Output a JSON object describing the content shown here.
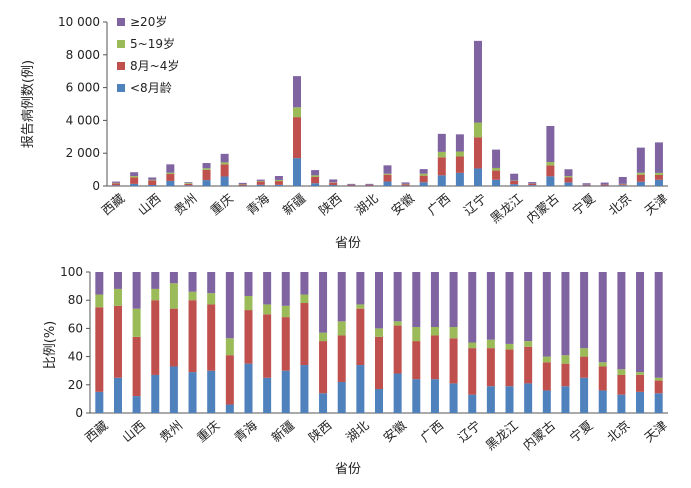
{
  "colors": {
    "lt8m": "#4F81BD",
    "m8to4y": "#C0504D",
    "y5to19": "#9BBB59",
    "ge20": "#8064A2"
  },
  "top_chart": {
    "ylabel": "报告病例数(例)",
    "xlabel": "省份"
  },
  "bottom_chart": {
    "ylabel": "比例(%)",
    "xlabel": "省份"
  },
  "chart_data": [
    {
      "type": "bar",
      "stacked": true,
      "xlabel": "省份",
      "ylabel": "报告病例数(例)",
      "ylim": [
        0,
        10000
      ],
      "yticks": [
        "0",
        "2 000",
        "4 000",
        "6 000",
        "8 000",
        "10 000"
      ],
      "categories": [
        "西藏",
        "",
        "山西",
        "",
        "贵州",
        "",
        "重庆",
        "",
        "青海",
        "",
        "新疆",
        "",
        "陕西",
        "",
        "湖北",
        "",
        "安徽",
        "",
        "广西",
        "",
        "辽宁",
        "",
        "黑龙江",
        "",
        "内蒙古",
        "",
        "宁夏",
        "",
        "北京",
        "",
        "天津"
      ],
      "legend_position": "top-left",
      "series": [
        {
          "name": "<8月龄",
          "values": [
            40,
            130,
            60,
            310,
            40,
            360,
            580,
            30,
            70,
            70,
            1700,
            170,
            60,
            20,
            20,
            270,
            30,
            230,
            650,
            800,
            1070,
            380,
            110,
            50,
            590,
            220,
            30,
            30,
            50,
            260,
            380
          ]
        },
        {
          "name": "8月~4岁",
          "values": [
            120,
            400,
            280,
            420,
            90,
            620,
            740,
            70,
            200,
            230,
            2500,
            380,
            140,
            40,
            40,
            420,
            80,
            400,
            1100,
            1000,
            1900,
            560,
            200,
            90,
            670,
            300,
            40,
            60,
            60,
            430,
            290
          ]
        },
        {
          "name": "5~19岁",
          "values": [
            30,
            80,
            40,
            80,
            50,
            100,
            120,
            20,
            40,
            70,
            600,
            100,
            20,
            10,
            10,
            60,
            20,
            120,
            330,
            300,
            900,
            160,
            20,
            10,
            200,
            80,
            10,
            10,
            20,
            120,
            130
          ]
        },
        {
          "name": "≥20岁",
          "values": [
            80,
            230,
            140,
            510,
            50,
            320,
            520,
            70,
            80,
            240,
            1900,
            320,
            180,
            60,
            60,
            510,
            90,
            280,
            1100,
            1050,
            4980,
            1120,
            420,
            90,
            2200,
            420,
            90,
            110,
            420,
            1530,
            1860
          ]
        }
      ]
    },
    {
      "type": "bar",
      "stacked": true,
      "xlabel": "省份",
      "ylabel": "比例(%)",
      "ylim": [
        0,
        100
      ],
      "yticks": [
        "0",
        "20",
        "40",
        "60",
        "80",
        "100"
      ],
      "categories": [
        "西藏",
        "",
        "山西",
        "",
        "贵州",
        "",
        "重庆",
        "",
        "青海",
        "",
        "新疆",
        "",
        "陕西",
        "",
        "湖北",
        "",
        "安徽",
        "",
        "广西",
        "",
        "辽宁",
        "",
        "黑龙江",
        "",
        "内蒙古",
        "",
        "宁夏",
        "",
        "北京",
        "",
        "天津"
      ],
      "series": [
        {
          "name": "<8月龄",
          "values": [
            15,
            25,
            12,
            27,
            33,
            29,
            30,
            6,
            35,
            25,
            30,
            34,
            14,
            22,
            34,
            17,
            28,
            24,
            24,
            21,
            13,
            19,
            19,
            21,
            16,
            19,
            25,
            16,
            13,
            15,
            14
          ]
        },
        {
          "name": "8月~4岁",
          "values": [
            60,
            51,
            42,
            53,
            41,
            51,
            47,
            35,
            38,
            45,
            38,
            44,
            37,
            33,
            40,
            37,
            34,
            27,
            31,
            32,
            33,
            27,
            26,
            26,
            20,
            16,
            15,
            17,
            14,
            12,
            9
          ]
        },
        {
          "name": "5~19岁",
          "values": [
            9,
            12,
            20,
            8,
            18,
            6,
            8,
            12,
            10,
            7,
            8,
            6,
            6,
            10,
            3,
            6,
            3,
            10,
            6,
            8,
            4,
            6,
            4,
            4,
            4,
            6,
            6,
            3,
            4,
            2,
            2
          ]
        },
        {
          "name": "≥20岁",
          "values": [
            16,
            12,
            26,
            12,
            8,
            14,
            15,
            47,
            17,
            23,
            24,
            16,
            43,
            35,
            23,
            40,
            35,
            39,
            39,
            39,
            50,
            48,
            51,
            49,
            60,
            59,
            54,
            64,
            69,
            71,
            75
          ]
        }
      ]
    }
  ]
}
